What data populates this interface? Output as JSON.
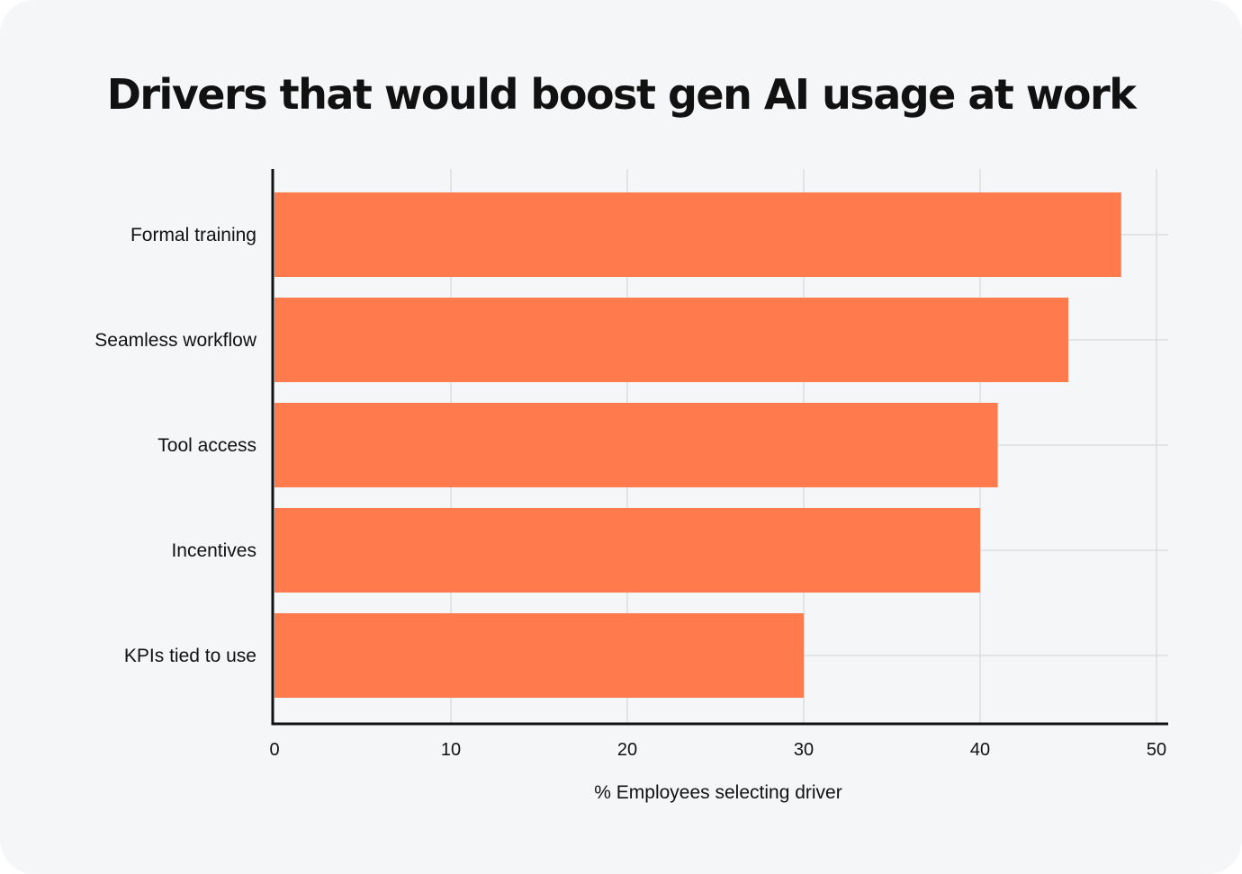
{
  "chart_data": {
    "type": "bar",
    "orientation": "horizontal",
    "title": "Drivers that would boost gen AI usage at work",
    "categories": [
      "Formal training",
      "Seamless workflow",
      "Tool access",
      "Incentives",
      "KPIs tied to use"
    ],
    "values": [
      48,
      45,
      41,
      40,
      30
    ],
    "xlabel": "% Employees selecting driver",
    "ylabel": "",
    "xlim": [
      0,
      50
    ],
    "xticks": [
      "0",
      "10",
      "20",
      "30",
      "40",
      "50"
    ],
    "grid": true,
    "bar_color": "#ff7a4d"
  }
}
